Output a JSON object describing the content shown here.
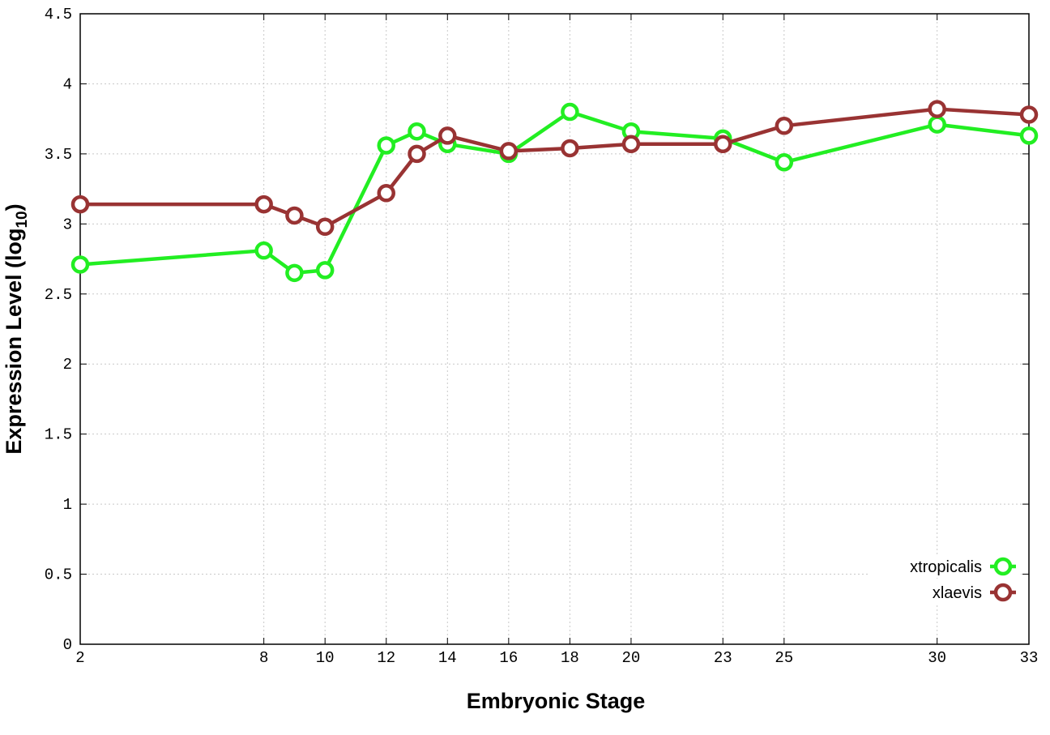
{
  "chart_data": {
    "type": "line",
    "title": "",
    "xlabel": "Embryonic Stage",
    "ylabel_main": "Expression Level (log",
    "ylabel_sub": "10",
    "ylabel_close": ")",
    "xlim": [
      2,
      33
    ],
    "ylim": [
      0,
      4.5
    ],
    "x_ticks": [
      2,
      8,
      10,
      12,
      14,
      16,
      18,
      20,
      23,
      25,
      30,
      33
    ],
    "x_tick_labels": [
      "2",
      "8",
      "10",
      "12",
      "14",
      "16",
      "18",
      "20",
      "23",
      "25",
      "30",
      "33"
    ],
    "y_ticks": [
      0,
      0.5,
      1,
      1.5,
      2,
      2.5,
      3,
      3.5,
      4,
      4.5
    ],
    "y_tick_labels": [
      "0",
      "0.5",
      "1",
      "1.5",
      "2",
      "2.5",
      "3",
      "3.5",
      "4",
      "4.5"
    ],
    "grid": true,
    "legend_position": "bottom-right",
    "x": [
      2,
      8,
      9,
      10,
      12,
      13,
      14,
      16,
      18,
      20,
      23,
      25,
      30,
      33
    ],
    "series": [
      {
        "name": "xtropicalis",
        "color": "#22ee22",
        "values": [
          2.71,
          2.81,
          2.65,
          2.67,
          3.56,
          3.66,
          3.57,
          3.5,
          3.8,
          3.66,
          3.61,
          3.44,
          3.71,
          3.63
        ]
      },
      {
        "name": "xlaevis",
        "color": "#993333",
        "values": [
          3.14,
          3.14,
          3.06,
          2.98,
          3.22,
          3.5,
          3.63,
          3.52,
          3.54,
          3.57,
          3.57,
          3.7,
          3.82,
          3.78
        ]
      }
    ]
  }
}
